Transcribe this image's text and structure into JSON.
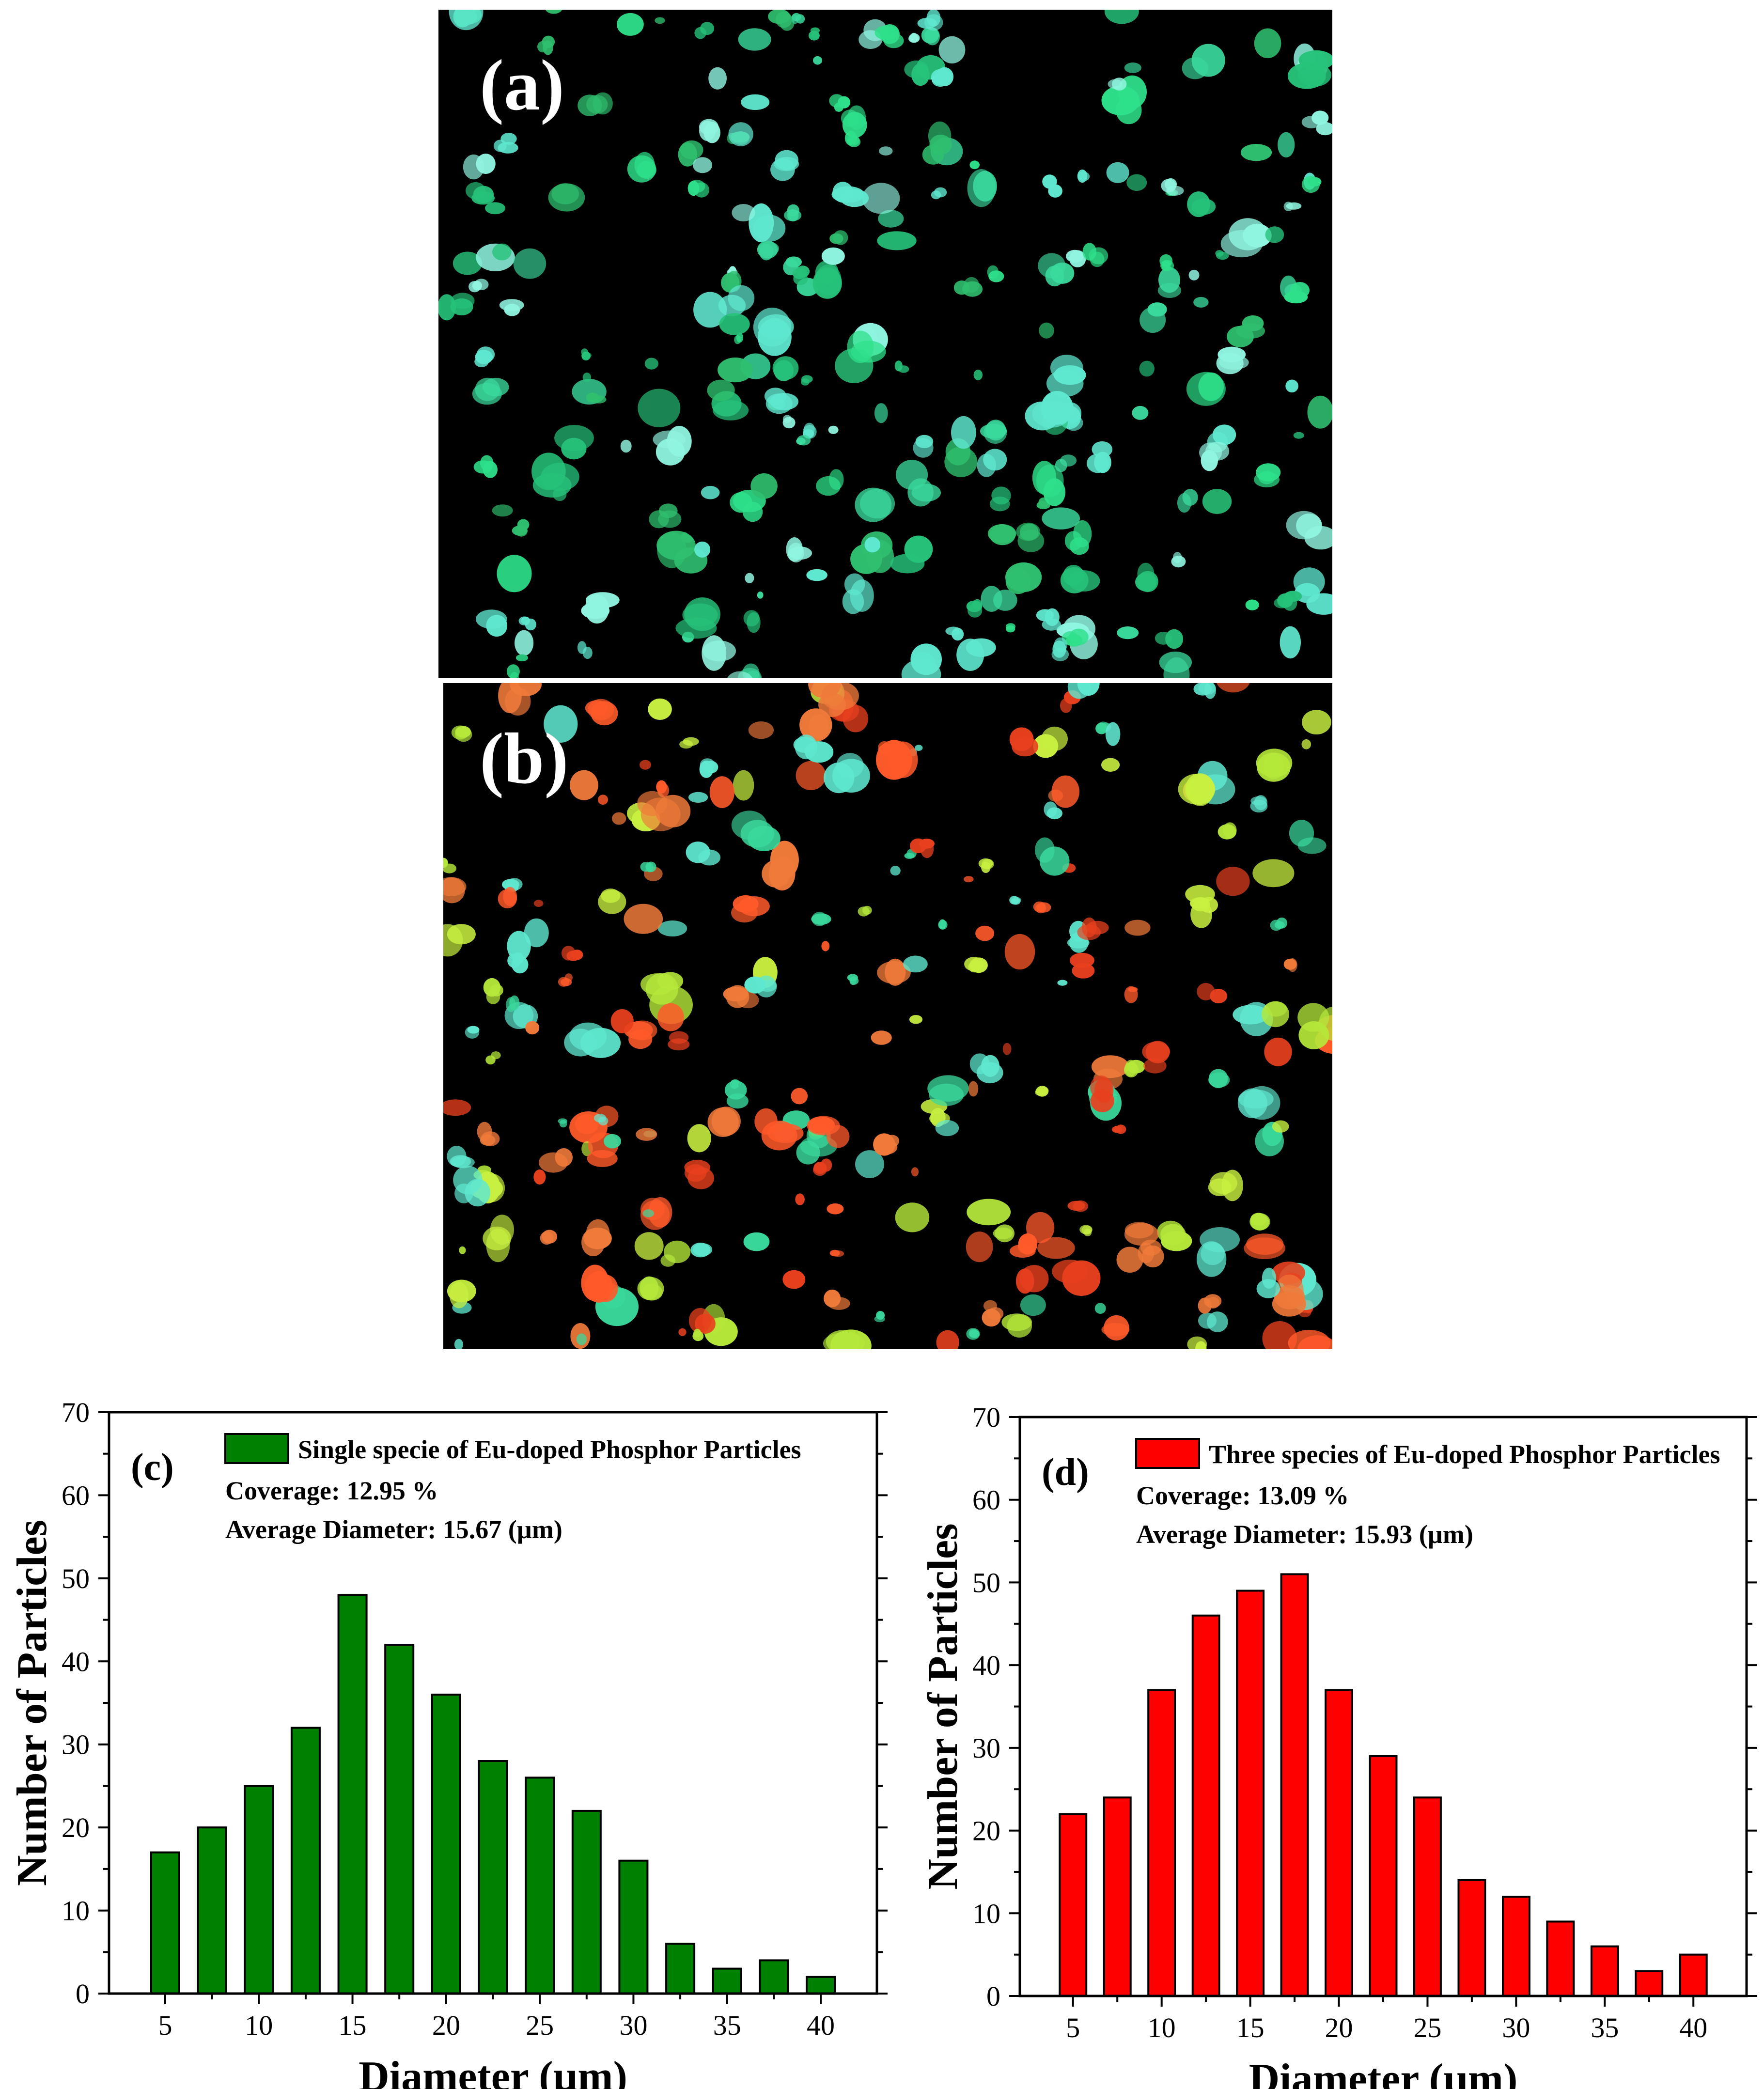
{
  "panels": {
    "a": {
      "label": "(a)"
    },
    "b": {
      "label": "(b)"
    }
  },
  "chart_data": [
    {
      "type": "bar",
      "panel_label": "(c)",
      "xlabel": "Diameter (µm)",
      "ylabel": "Number of Particles",
      "x": [
        5,
        7.5,
        10,
        12.5,
        15,
        17.5,
        20,
        22.5,
        25,
        27.5,
        30,
        32.5,
        35,
        37.5,
        40
      ],
      "xticks": [
        5,
        10,
        15,
        20,
        25,
        30,
        35,
        40
      ],
      "yticks": [
        0,
        10,
        20,
        30,
        40,
        50,
        60,
        70
      ],
      "xlim": [
        2,
        43
      ],
      "ylim": [
        0,
        70
      ],
      "series": [
        {
          "name": "Single specie of Eu-doped Phosphor Particles",
          "color": "#008000",
          "values": [
            17,
            20,
            25,
            32,
            48,
            42,
            36,
            28,
            26,
            22,
            16,
            6,
            3,
            4,
            2
          ]
        }
      ],
      "annotations": [
        "Coverage: 12.95 %",
        "Average Diameter: 15.67 (µm)"
      ],
      "legend_position": "top"
    },
    {
      "type": "bar",
      "panel_label": "(d)",
      "xlabel": "Diameter (µm)",
      "ylabel": "Number of Particles",
      "x": [
        5,
        7.5,
        10,
        12.5,
        15,
        17.5,
        20,
        22.5,
        25,
        27.5,
        30,
        32.5,
        35,
        37.5,
        40
      ],
      "xticks": [
        5,
        10,
        15,
        20,
        25,
        30,
        35,
        40
      ],
      "yticks": [
        0,
        10,
        20,
        30,
        40,
        50,
        60,
        70
      ],
      "xlim": [
        2,
        43
      ],
      "ylim": [
        0,
        70
      ],
      "series": [
        {
          "name": "Three species of Eu-doped Phosphor Particles",
          "color": "#ff0000",
          "values": [
            22,
            24,
            37,
            46,
            49,
            51,
            37,
            29,
            24,
            14,
            12,
            9,
            6,
            3,
            5
          ]
        }
      ],
      "annotations": [
        "Coverage: 13.09 %",
        "Average Diameter: 15.93 (µm)"
      ],
      "legend_position": "top"
    }
  ]
}
